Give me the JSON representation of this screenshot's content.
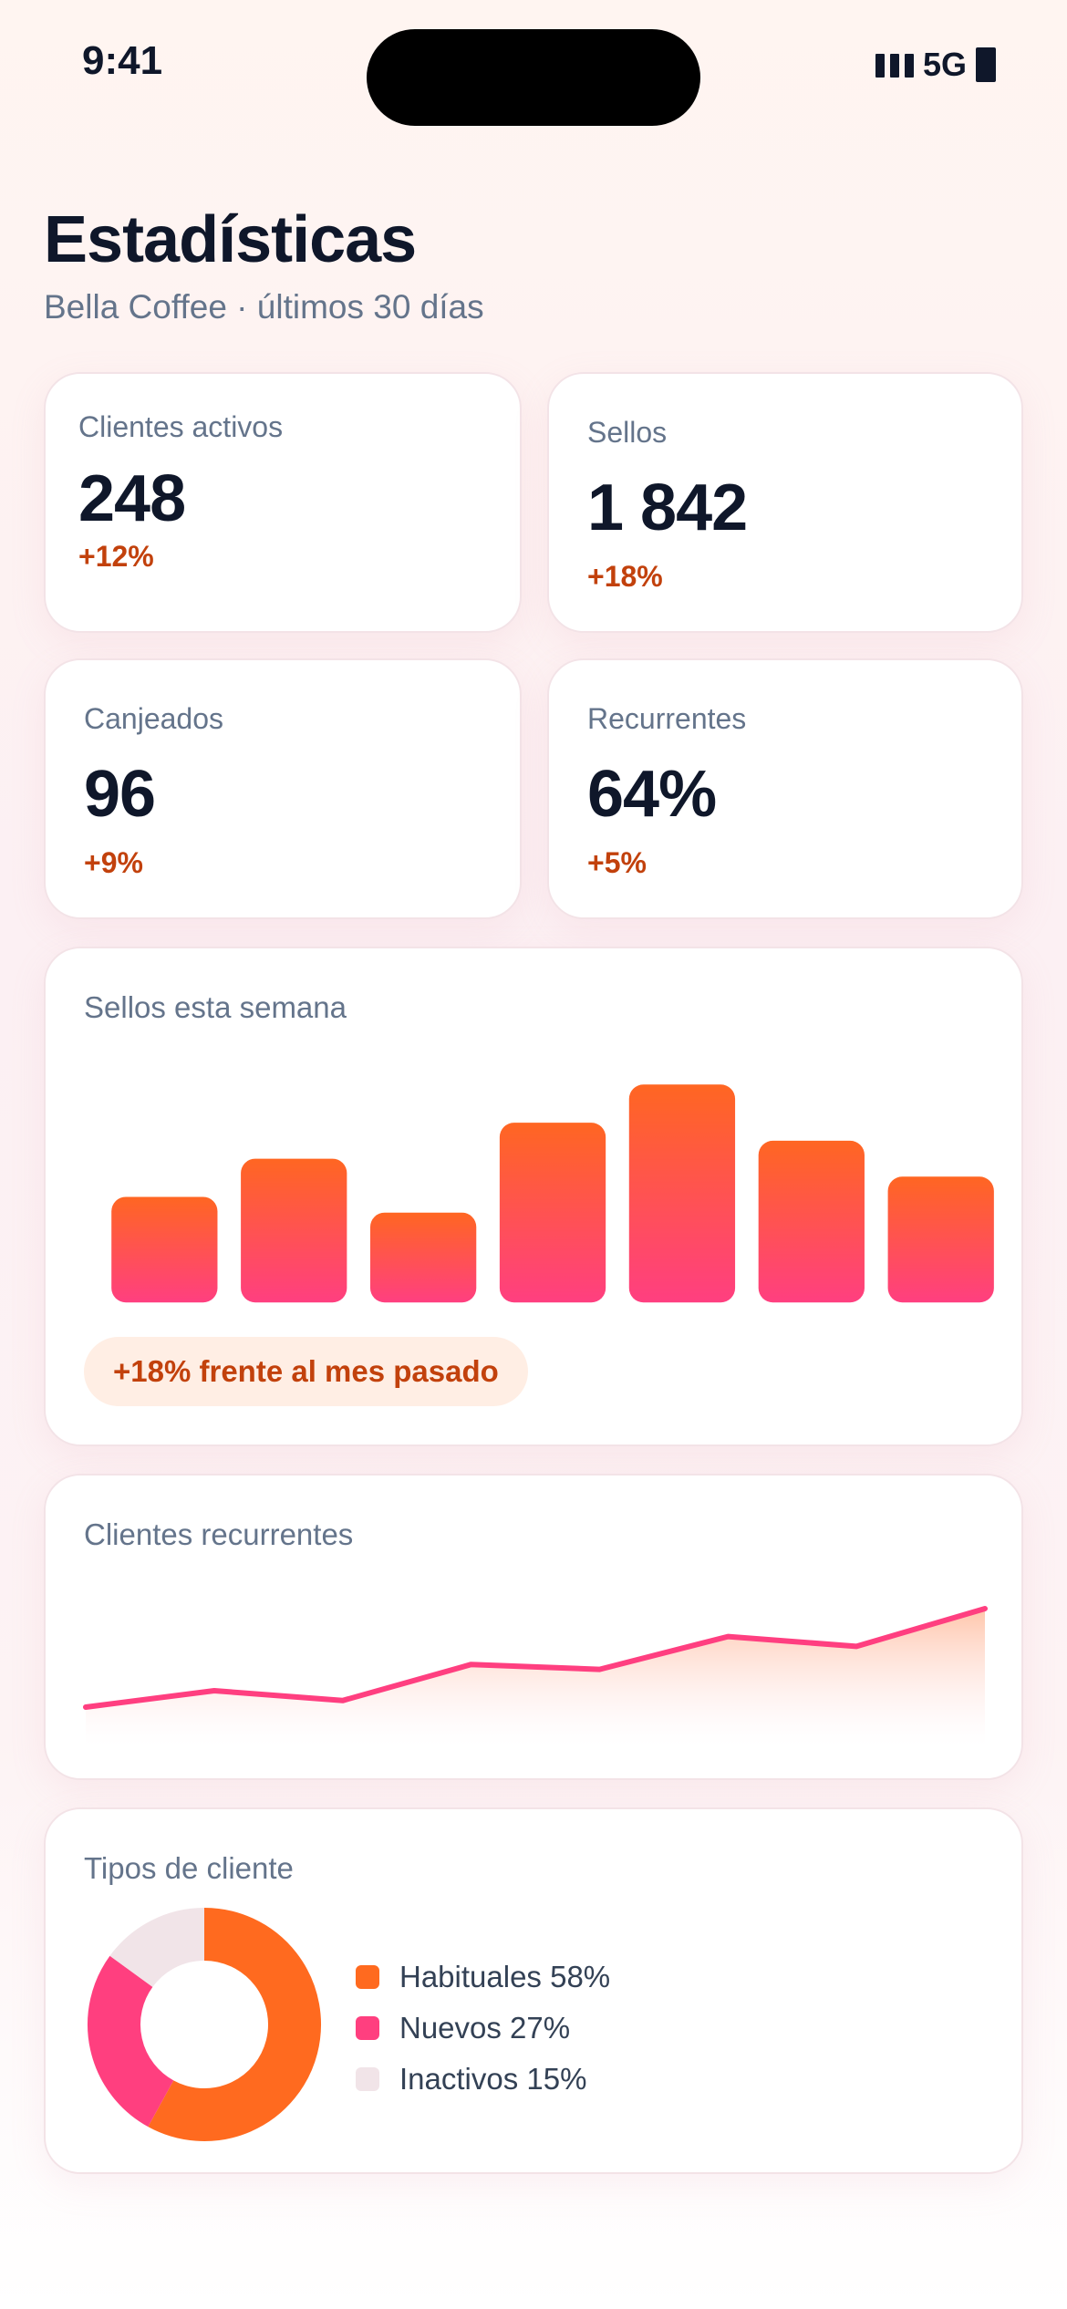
{
  "status": {
    "time": "9:41",
    "network": "5G"
  },
  "header": {
    "title": "Estadísticas",
    "subtitle": "Bella Coffee · últimos 30 días"
  },
  "stats": [
    {
      "label": "Clientes activos",
      "value": "248",
      "delta": "+12%"
    },
    {
      "label": "Sellos",
      "value": "1 842",
      "delta": "+18%"
    },
    {
      "label": "Canjeados",
      "value": "96",
      "delta": "+9%"
    },
    {
      "label": "Recurrentes",
      "value": "64%",
      "delta": "+5%"
    }
  ],
  "weekly": {
    "label": "Sellos esta semana",
    "badge": "+18% frente al mes pasado"
  },
  "recurring": {
    "label": "Clientes recurrentes"
  },
  "types": {
    "label": "Tipos de cliente",
    "legend": [
      {
        "label": "Habituales 58%",
        "color": "#ff6a1f"
      },
      {
        "label": "Nuevos 27%",
        "color": "#ff3f7f"
      },
      {
        "label": "Inactivos 15%",
        "color": "#f1e4e8"
      }
    ]
  },
  "colors": {
    "accent_orange": "#ff6a1f",
    "accent_pink": "#ff3f7f",
    "delta": "#c2410c"
  },
  "chart_data": [
    {
      "type": "bar",
      "title": "Sellos esta semana",
      "categories": [
        "",
        "",
        "",
        "",
        "",
        "",
        ""
      ],
      "values": [
        47,
        64,
        40,
        80,
        97,
        72,
        56
      ],
      "ylim": [
        0,
        100
      ],
      "grid": false
    },
    {
      "type": "area",
      "title": "Clientes recurrentes",
      "x": [
        1,
        2,
        3,
        4,
        5,
        6,
        7,
        8
      ],
      "values": [
        20,
        30,
        24,
        46,
        43,
        63,
        57,
        80
      ],
      "ylim": [
        0,
        100
      ],
      "grid": false
    },
    {
      "type": "pie",
      "title": "Tipos de cliente",
      "categories": [
        "Habituales",
        "Nuevos",
        "Inactivos"
      ],
      "values": [
        58,
        27,
        15
      ],
      "donut": true,
      "legend": "right"
    }
  ]
}
